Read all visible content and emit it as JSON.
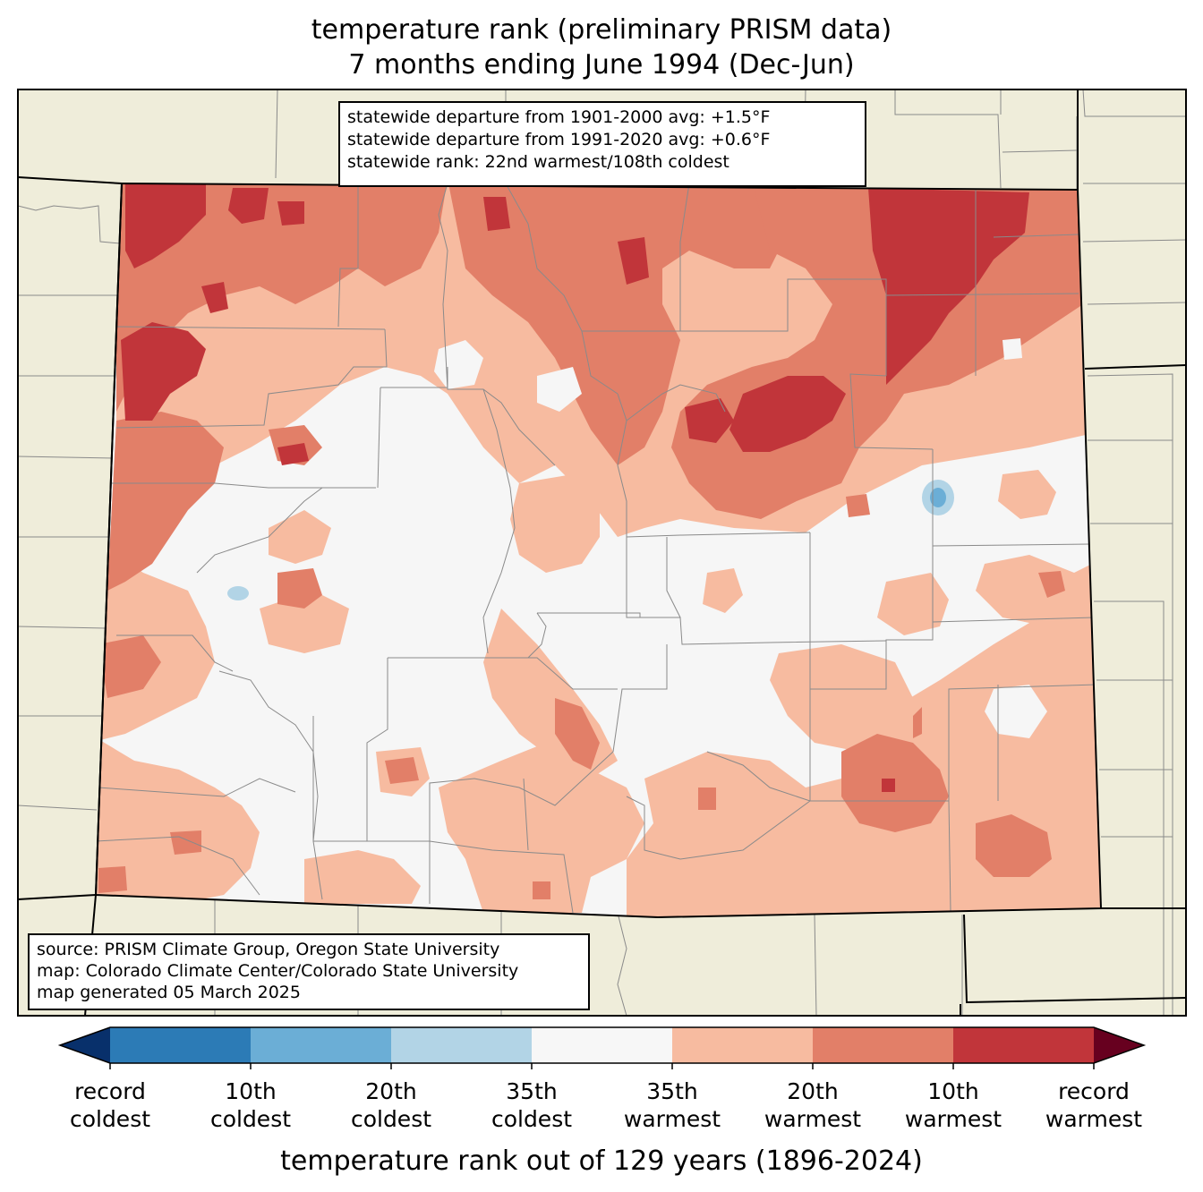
{
  "title": {
    "line1": "temperature rank (preliminary PRISM data)",
    "line2": "7 months ending June 1994 (Dec-Jun)"
  },
  "stats": {
    "line1": "statewide departure from 1901-2000 avg: +1.5°F",
    "line2": "statewide departure from 1991-2020 avg: +0.6°F",
    "line3": "statewide rank: 22nd warmest/108th coldest"
  },
  "source": {
    "line1": "source: PRISM Climate Group, Oregon State University",
    "line2": "map: Colorado Climate Center/Colorado State University",
    "line3": "map generated 05 March 2025"
  },
  "colorbar": {
    "label": "temperature rank out of 129 years (1896-2024)",
    "ticks": [
      {
        "line1": "record",
        "line2": "coldest"
      },
      {
        "line1": "10th",
        "line2": "coldest"
      },
      {
        "line1": "20th",
        "line2": "coldest"
      },
      {
        "line1": "35th",
        "line2": "coldest"
      },
      {
        "line1": "35th",
        "line2": "warmest"
      },
      {
        "line1": "20th",
        "line2": "warmest"
      },
      {
        "line1": "10th",
        "line2": "warmest"
      },
      {
        "line1": "record",
        "line2": "warmest"
      }
    ],
    "colors": [
      "#08306b",
      "#2c7bb6",
      "#6baed6",
      "#b2d4e6",
      "#f7f7f7",
      "#f7bba0",
      "#e27f68",
      "#c1353a",
      "#67001f"
    ]
  },
  "map_colors": {
    "background": "#efedda",
    "near_normal": "#f6f6f6",
    "warm_35": "#f7bba0",
    "warm_20": "#e27f68",
    "warm_10": "#c1353a",
    "cold_20": "#b2d4e6",
    "cold_10": "#6baed6"
  }
}
